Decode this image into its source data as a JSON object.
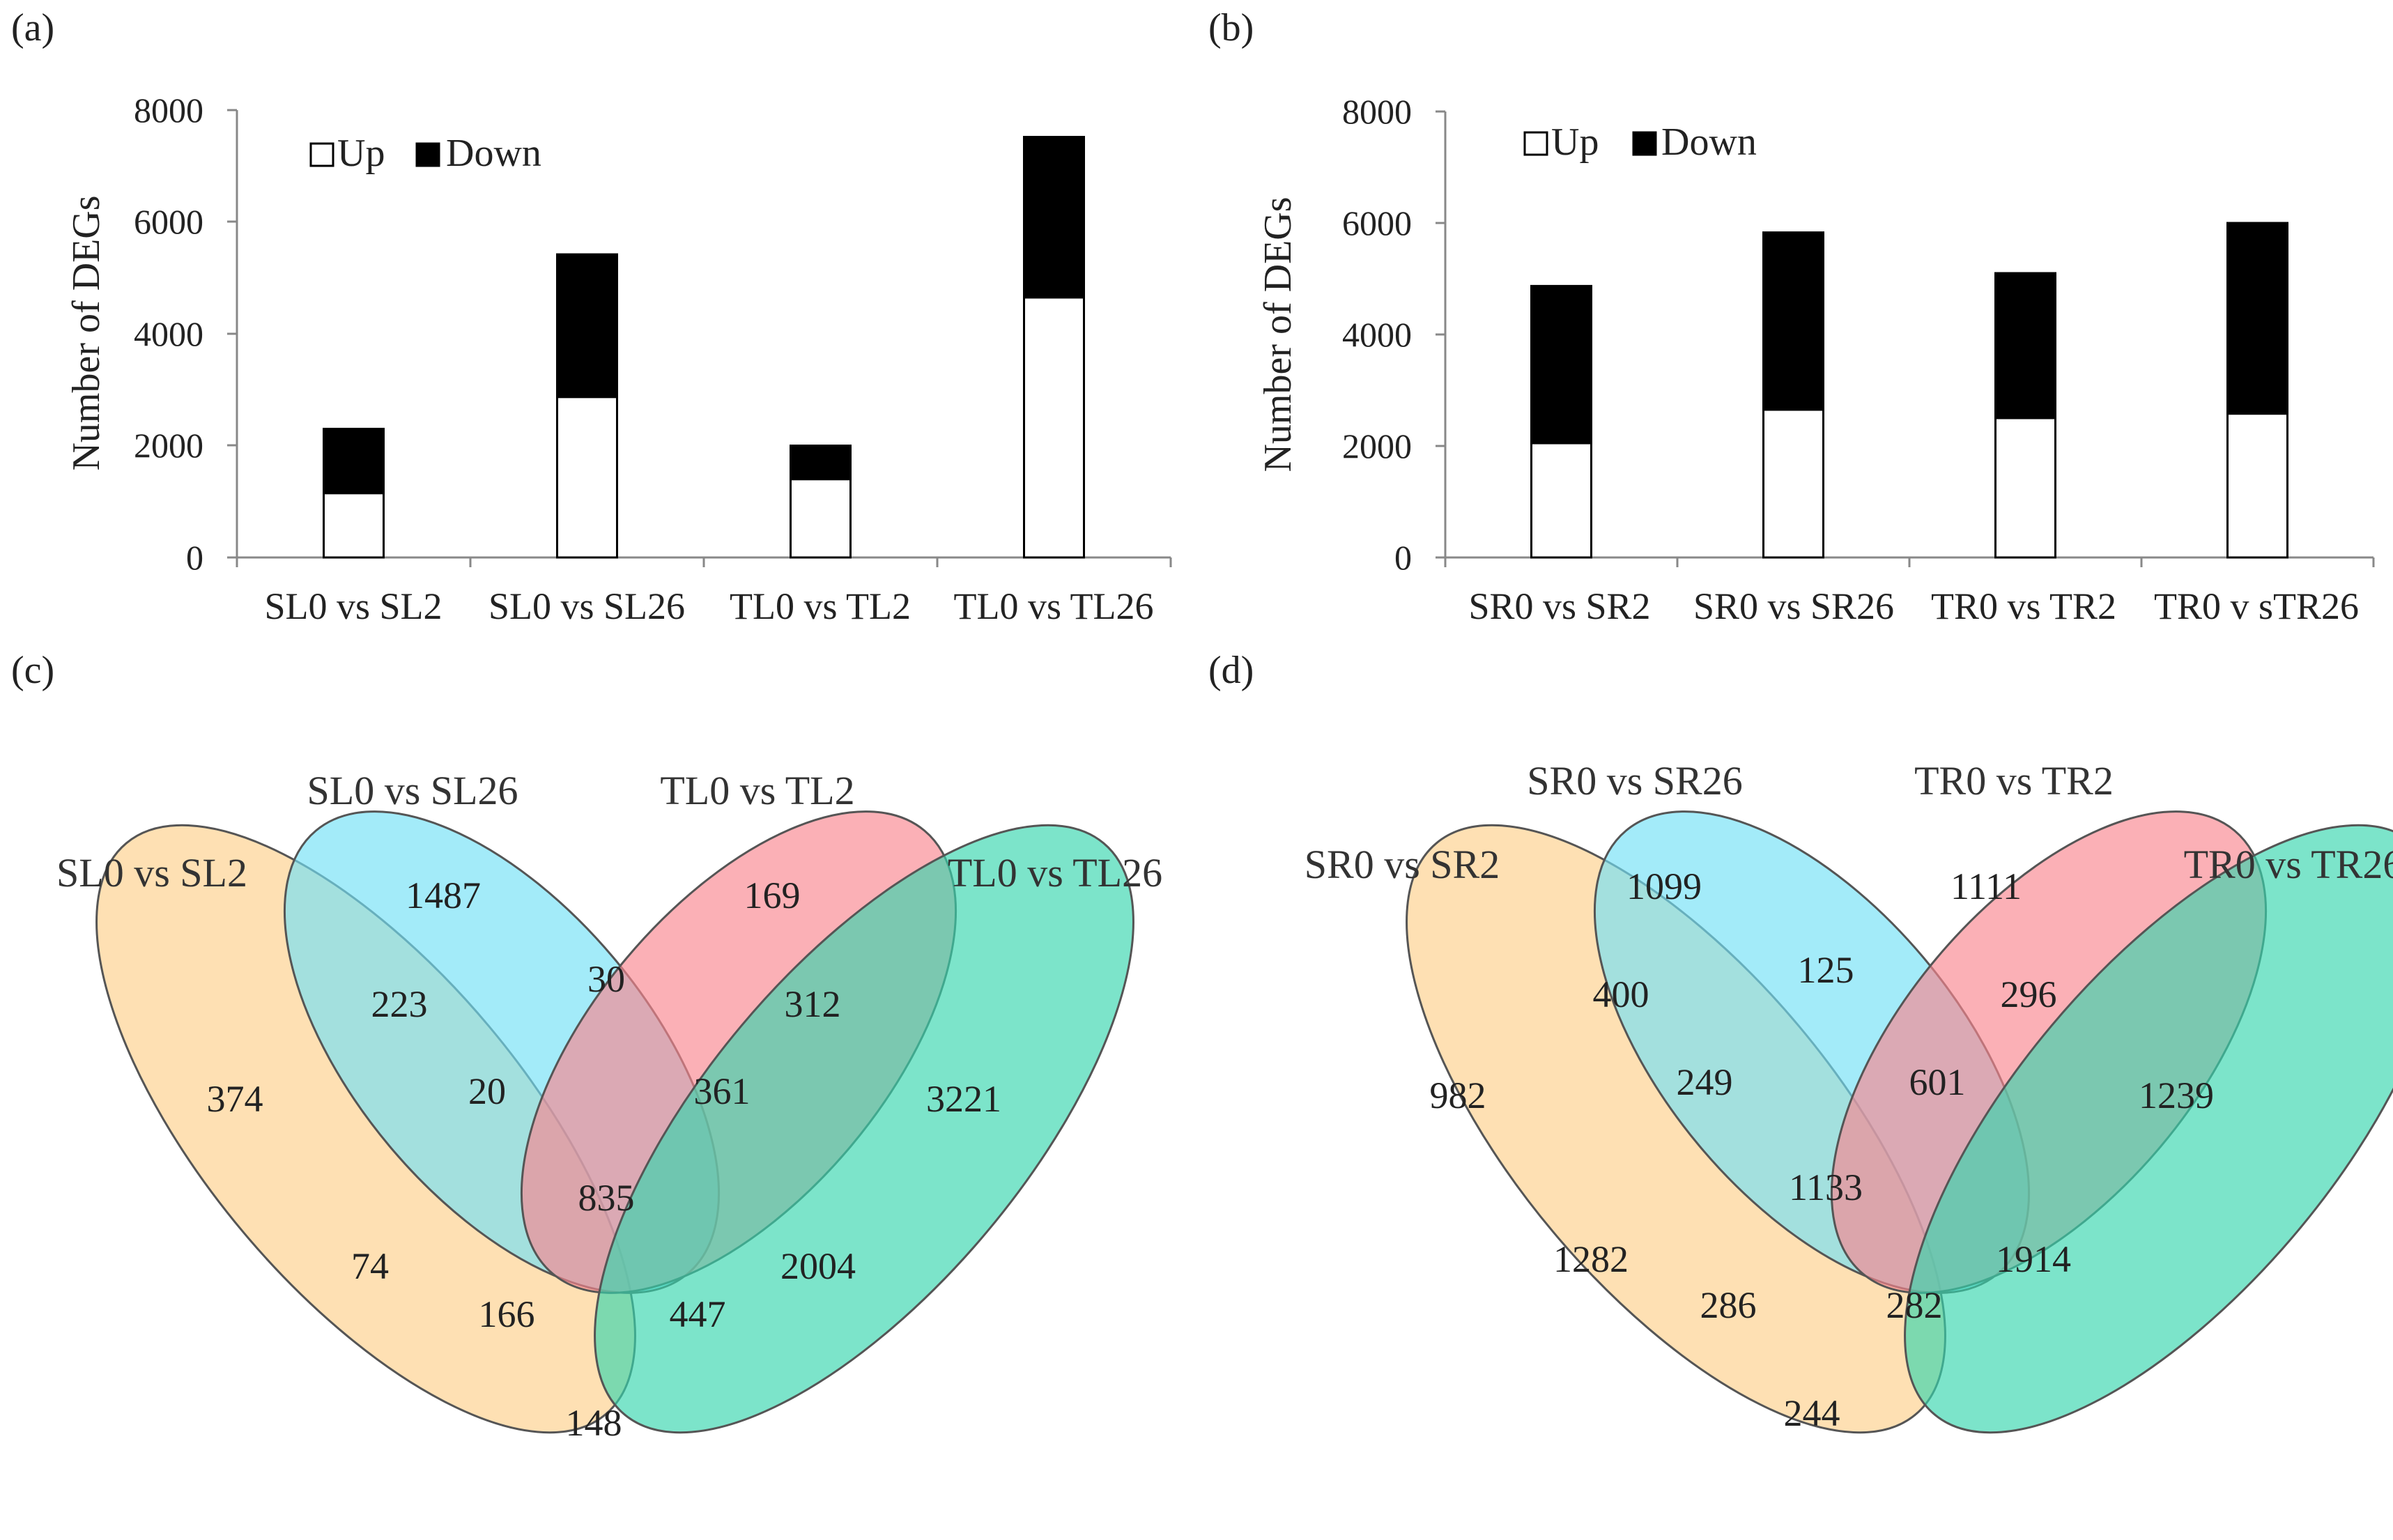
{
  "chart_data": [
    {
      "type": "bar",
      "stacked": true,
      "panel": "(a)",
      "categories": [
        "SL0 vs SL2",
        "SL0 vs SL26",
        "TL0 vs TL2",
        "TL0 vs TL26"
      ],
      "series": [
        {
          "name": "Up",
          "color": "#ffffff",
          "values": [
            1150,
            2870,
            1400,
            4650
          ]
        },
        {
          "name": "Down",
          "color": "#000000",
          "values": [
            1150,
            2550,
            600,
            2870
          ]
        }
      ],
      "ylabel": "Number of DEGs",
      "yticks": [
        "0",
        "2000",
        "4000",
        "6000",
        "8000"
      ],
      "ylim": [
        0,
        8000
      ],
      "legend": "top-left"
    },
    {
      "type": "bar",
      "stacked": true,
      "panel": "(b)",
      "categories": [
        "SR0 vs SR2",
        "SR0 vs SR26",
        "TR0 vs TR2",
        "TR0 v sTR26"
      ],
      "series": [
        {
          "name": "Up",
          "color": "#ffffff",
          "values": [
            2050,
            2650,
            2500,
            2580
          ]
        },
        {
          "name": "Down",
          "color": "#000000",
          "values": [
            2820,
            3180,
            2600,
            3420
          ]
        }
      ],
      "ylabel": "Number of DEGs",
      "yticks": [
        "0",
        "2000",
        "4000",
        "6000",
        "8000"
      ],
      "ylim": [
        0,
        8000
      ],
      "legend": "top-left"
    },
    {
      "type": "venn",
      "panel": "(c)",
      "sets": [
        "SL0 vs SL2",
        "SL0 vs SL26",
        "TL0 vs TL2",
        "TL0 vs TL26"
      ],
      "set_colors": [
        "#fdcf8b",
        "#72e0f6",
        "#f9868f",
        "#36d6ad"
      ],
      "regions": [
        "374",
        "1487",
        "169",
        "3221",
        "223",
        "30",
        "312",
        "20",
        "361",
        "835",
        "74",
        "2004",
        "166",
        "447",
        "148"
      ]
    },
    {
      "type": "venn",
      "panel": "(d)",
      "sets": [
        "SR0 vs SR2",
        "SR0 vs SR26",
        "TR0 vs TR2",
        "TR0 vs TR26"
      ],
      "set_colors": [
        "#fdcf8b",
        "#72e0f6",
        "#f9868f",
        "#36d6ad"
      ],
      "regions": [
        "982",
        "1099",
        "1111",
        "1239",
        "400",
        "125",
        "296",
        "249",
        "601",
        "1133",
        "1282",
        "1914",
        "286",
        "282",
        "244"
      ]
    }
  ]
}
